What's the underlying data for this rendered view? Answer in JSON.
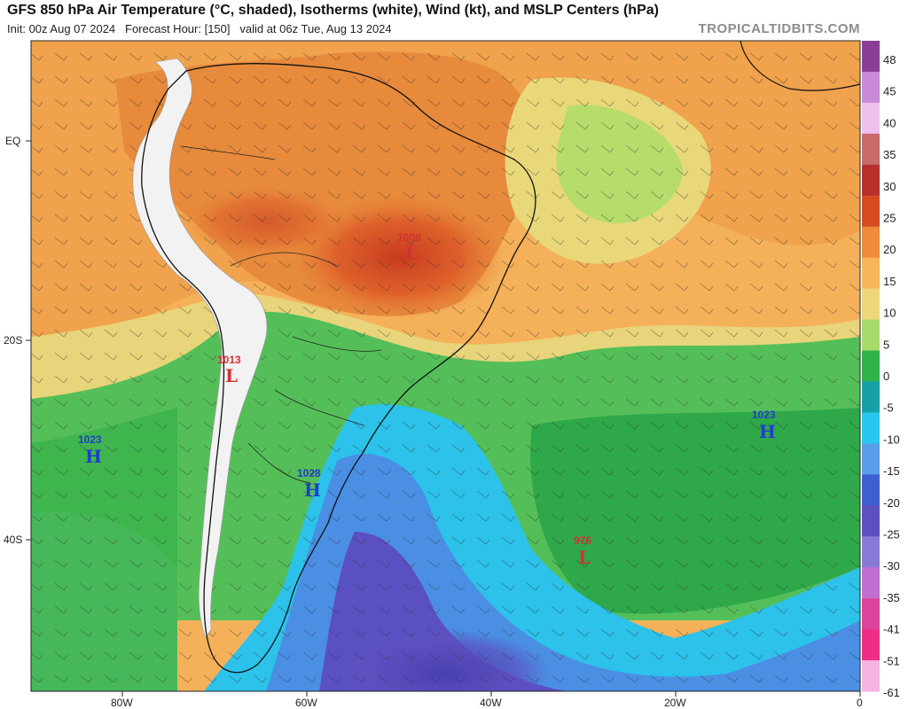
{
  "header": {
    "title": "GFS 850 hPa Air Temperature (°C, shaded), Isotherms (white), Wind (kt), and MSLP Centers (hPa)",
    "init": "Init: 00z Aug 07 2024",
    "forecast_hour": "Forecast Hour: [150]",
    "valid": "valid at 06z Tue, Aug 13 2024",
    "brand": "TROPICALTIDBITS.COM"
  },
  "axes": {
    "lat_labels": [
      "EQ",
      "20S",
      "40S"
    ],
    "lon_labels": [
      "80W",
      "60W",
      "40W",
      "20W",
      "0"
    ]
  },
  "colorbar": {
    "labels": [
      "48",
      "45",
      "40",
      "35",
      "30",
      "25",
      "20",
      "15",
      "10",
      "5",
      "0",
      "-5",
      "-10",
      "-15",
      "-20",
      "-25",
      "-30",
      "-35",
      "-41",
      "-51",
      "-61"
    ],
    "colors": [
      "#8a3e95",
      "#c98ad6",
      "#efc0ee",
      "#c86b6b",
      "#b8302c",
      "#d64c22",
      "#ee8a3c",
      "#f7b55c",
      "#eed77a",
      "#a8dc6a",
      "#2fb34a",
      "#18a0a8",
      "#28c8ee",
      "#5a9de8",
      "#3f5fd0",
      "#5c4fc0",
      "#8a7ad8",
      "#c26fd0",
      "#d8459a",
      "#ee2d84",
      "#f5b4e4"
    ]
  },
  "pressure_centers": [
    {
      "type": "L",
      "value": "1008",
      "color": "#d23232"
    },
    {
      "type": "L",
      "value": "1013",
      "color": "#d23232"
    },
    {
      "type": "H",
      "value": "1023",
      "color": "#1f3fc8"
    },
    {
      "type": "H",
      "value": "1028",
      "color": "#1f3fc8"
    },
    {
      "type": "H",
      "value": "1023",
      "color": "#1f3fc8"
    },
    {
      "type": "L",
      "value": "976",
      "color": "#d23232"
    }
  ]
}
